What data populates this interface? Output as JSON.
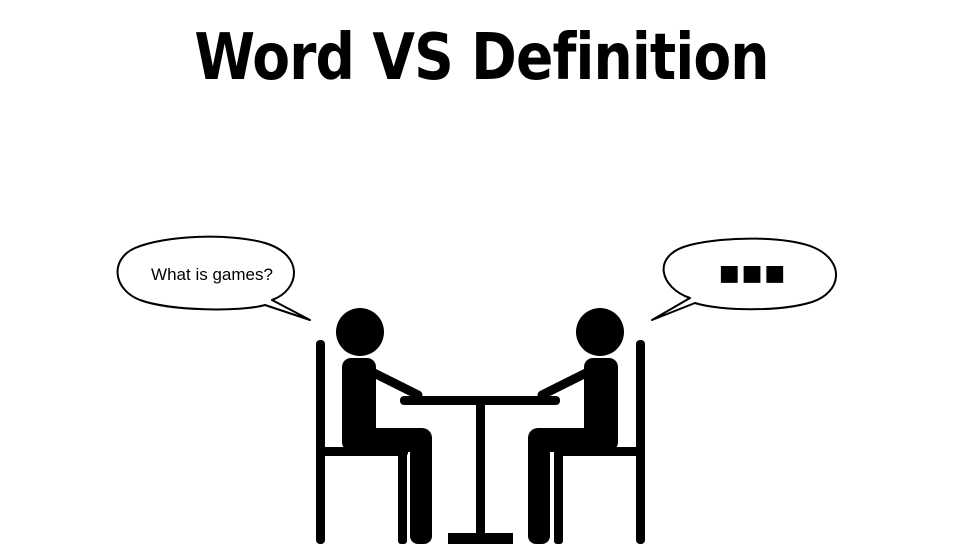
{
  "title": "Word VS Definition",
  "left_bubble": {
    "text": "What is games?"
  },
  "right_bubble": {
    "text": "■■■"
  },
  "colors": {
    "ink": "#000000",
    "background": "#ffffff"
  }
}
